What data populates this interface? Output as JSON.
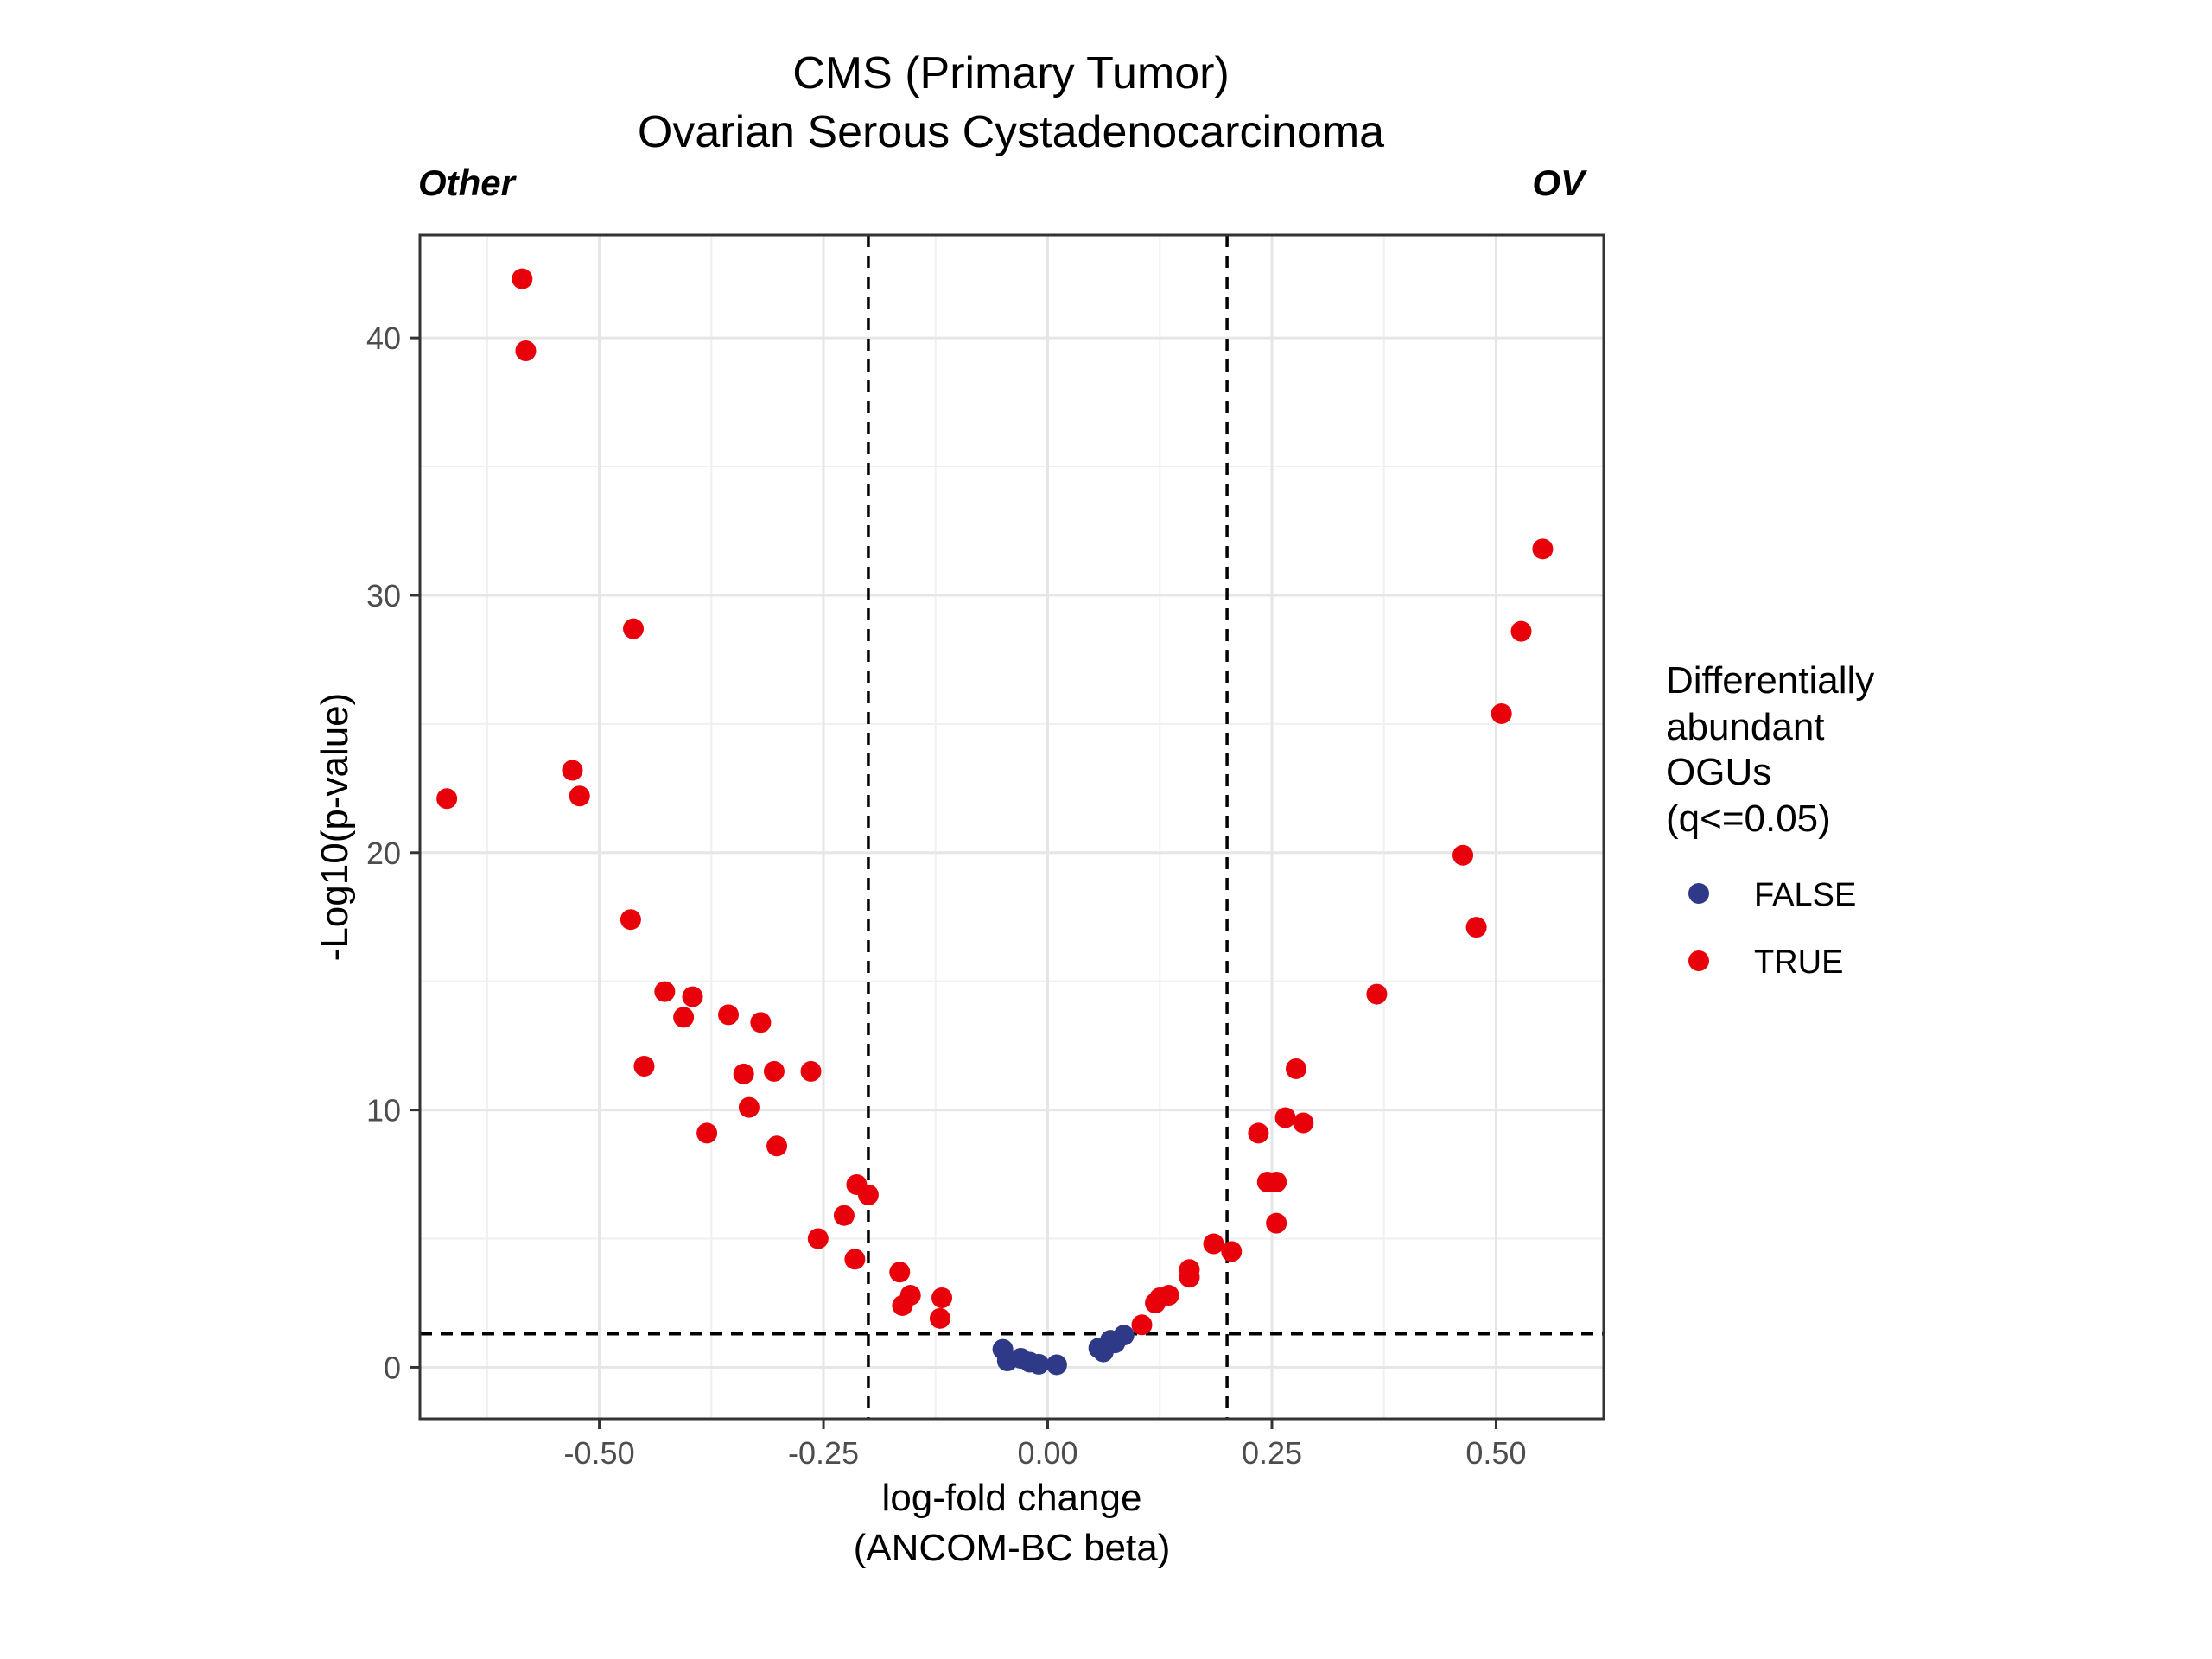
{
  "chart_data": {
    "type": "scatter",
    "title_lines": [
      "CMS (Primary Tumor)",
      "Ovarian Serous Cystadenocarcinoma"
    ],
    "side_labels": {
      "left": "Other",
      "right": "OV"
    },
    "xlabel_lines": [
      "log-fold change",
      "(ANCOM-BC beta)"
    ],
    "ylabel": "-Log10(p-value)",
    "xlim": [
      -0.7,
      0.62
    ],
    "ylim": [
      -2,
      44
    ],
    "xticks": [
      -0.5,
      -0.25,
      0.0,
      0.25,
      0.5
    ],
    "xtick_labels": [
      "-0.50",
      "-0.25",
      "0.00",
      "0.25",
      "0.50"
    ],
    "yticks": [
      0,
      10,
      20,
      30,
      40
    ],
    "ytick_labels": [
      "0",
      "10",
      "20",
      "30",
      "40"
    ],
    "grid": true,
    "threshold_lines": {
      "vertical": [
        -0.2,
        0.2
      ],
      "horizontal": 1.3
    },
    "legend": {
      "title_lines": [
        "Differentially",
        "abundant",
        "OGUs",
        "(q<=0.05)"
      ],
      "placement": "right",
      "entries": [
        {
          "label": "FALSE",
          "color": "#2E3A87"
        },
        {
          "label": "TRUE",
          "color": "#E8000B"
        }
      ]
    },
    "series": [
      {
        "name": "FALSE",
        "color": "#2E3A87",
        "points": [
          [
            -0.05,
            0.7
          ],
          [
            -0.045,
            0.25
          ],
          [
            -0.03,
            0.35
          ],
          [
            -0.02,
            0.2
          ],
          [
            -0.01,
            0.12
          ],
          [
            0.01,
            0.1
          ],
          [
            0.057,
            0.75
          ],
          [
            0.062,
            0.6
          ],
          [
            0.07,
            1.05
          ],
          [
            0.075,
            0.95
          ],
          [
            0.085,
            1.25
          ]
        ]
      },
      {
        "name": "TRUE",
        "color": "#E8000B",
        "points": [
          [
            -0.586,
            42.3
          ],
          [
            -0.582,
            39.5
          ],
          [
            -0.67,
            22.1
          ],
          [
            -0.462,
            28.7
          ],
          [
            -0.53,
            23.2
          ],
          [
            -0.522,
            22.2
          ],
          [
            -0.465,
            17.4
          ],
          [
            -0.427,
            14.6
          ],
          [
            -0.406,
            13.6
          ],
          [
            -0.396,
            14.4
          ],
          [
            -0.356,
            13.7
          ],
          [
            -0.32,
            13.4
          ],
          [
            -0.45,
            11.7
          ],
          [
            -0.339,
            11.4
          ],
          [
            -0.305,
            11.5
          ],
          [
            -0.264,
            11.5
          ],
          [
            -0.333,
            10.1
          ],
          [
            -0.38,
            9.1
          ],
          [
            -0.302,
            8.6
          ],
          [
            -0.213,
            7.1
          ],
          [
            -0.2,
            6.7
          ],
          [
            -0.227,
            5.9
          ],
          [
            -0.256,
            5.0
          ],
          [
            -0.215,
            4.2
          ],
          [
            -0.165,
            3.7
          ],
          [
            -0.153,
            2.8
          ],
          [
            -0.162,
            2.4
          ],
          [
            -0.118,
            2.7
          ],
          [
            -0.12,
            1.9
          ],
          [
            0.105,
            1.65
          ],
          [
            0.12,
            2.5
          ],
          [
            0.125,
            2.7
          ],
          [
            0.135,
            2.8
          ],
          [
            0.158,
            3.5
          ],
          [
            0.158,
            3.8
          ],
          [
            0.185,
            4.8
          ],
          [
            0.205,
            4.5
          ],
          [
            0.255,
            5.6
          ],
          [
            0.245,
            7.2
          ],
          [
            0.255,
            7.2
          ],
          [
            0.235,
            9.1
          ],
          [
            0.265,
            9.7
          ],
          [
            0.285,
            9.5
          ],
          [
            0.277,
            11.6
          ],
          [
            0.367,
            14.5
          ],
          [
            0.463,
            19.9
          ],
          [
            0.478,
            17.1
          ],
          [
            0.506,
            25.4
          ],
          [
            0.528,
            28.6
          ],
          [
            0.552,
            31.8
          ]
        ]
      }
    ]
  }
}
